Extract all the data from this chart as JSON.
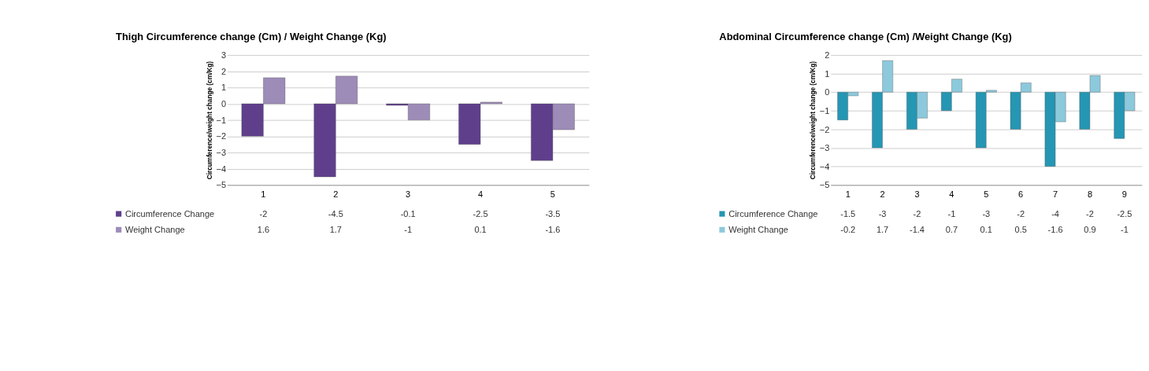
{
  "chart_data": [
    {
      "type": "bar",
      "title": "Thigh Circumference  change (Cm) / Weight Change (Kg)",
      "ylabel": "Circumference/weight change (cm/Kg)",
      "categories": [
        "1",
        "2",
        "3",
        "4",
        "5"
      ],
      "series": [
        {
          "name": "Circumference Change",
          "color": "#5f3f8c",
          "values": [
            -2,
            -4.5,
            -0.1,
            -2.5,
            -3.5
          ]
        },
        {
          "name": "Weight Change",
          "color": "#9d8bb8",
          "values": [
            1.6,
            1.7,
            -1,
            0.1,
            -1.6
          ]
        }
      ],
      "ylim": [
        -5,
        3
      ],
      "yticks": [
        -5,
        -4,
        -3,
        -2,
        -1,
        0,
        1,
        2,
        3
      ],
      "grid": "y",
      "legend": "bottom left",
      "data_labels": true
    },
    {
      "type": "bar",
      "title": "Abdominal Circumference  change (Cm) /Weight Change (Kg)",
      "ylabel": "Circumference/weight change (cm/Kg)",
      "categories": [
        "1",
        "2",
        "3",
        "4",
        "5",
        "6",
        "7",
        "8",
        "9"
      ],
      "series": [
        {
          "name": "Circumference Change",
          "color": "#2596b3",
          "values": [
            -1.5,
            -3,
            -2,
            -1,
            -3,
            -2,
            -4,
            -2,
            -2.5
          ]
        },
        {
          "name": "Weight Change",
          "color": "#8cc9dc",
          "values": [
            -0.2,
            1.7,
            -1.4,
            0.7,
            0.1,
            0.5,
            -1.6,
            0.9,
            -1
          ]
        }
      ],
      "ylim": [
        -5,
        2
      ],
      "yticks": [
        -5,
        -4,
        -3,
        -2,
        -1,
        0,
        1,
        2
      ],
      "grid": "y",
      "legend": "bottom left",
      "data_labels": true
    }
  ]
}
